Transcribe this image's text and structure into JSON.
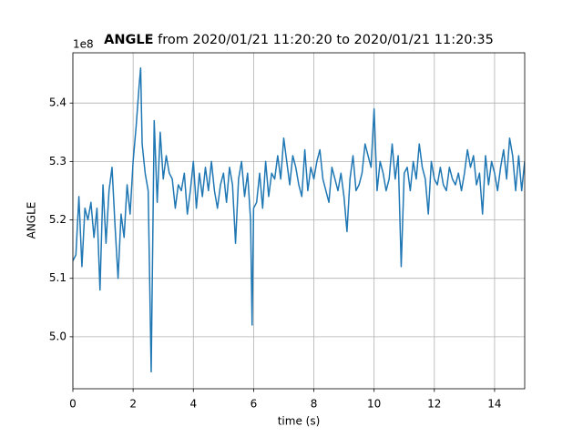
{
  "chart_data": {
    "type": "line",
    "title_bold": "ANGLE",
    "title": "from 2020/01/21 11:20:20 to 2020/01/21 11:20:35",
    "offset_text": "1e8",
    "xlabel": "time (s)",
    "ylabel": "ANGLE",
    "xlim": [
      0,
      15
    ],
    "ylim": [
      4.911,
      5.486
    ],
    "xticks": [
      0,
      2,
      4,
      6,
      8,
      10,
      12,
      14
    ],
    "yticks": [
      {
        "value": 5,
        "label": "5.0"
      },
      {
        "value": 5.1,
        "label": "5.1"
      },
      {
        "value": 5.2,
        "label": "5.2"
      },
      {
        "value": 5.3,
        "label": "5.3"
      },
      {
        "value": 5.4,
        "label": "5.4"
      }
    ],
    "grid": true,
    "x": [
      0,
      0.1,
      0.2,
      0.3,
      0.4,
      0.5,
      0.6,
      0.7,
      0.8,
      0.9,
      1,
      1.1,
      1.2,
      1.3,
      1.4,
      1.5,
      1.6,
      1.7,
      1.8,
      1.9,
      2,
      2.1,
      2.2,
      2.25,
      2.3,
      2.4,
      2.5,
      2.6,
      2.7,
      2.8,
      2.9,
      3,
      3.1,
      3.2,
      3.3,
      3.4,
      3.5,
      3.6,
      3.7,
      3.8,
      3.9,
      4,
      4.1,
      4.2,
      4.3,
      4.4,
      4.5,
      4.6,
      4.7,
      4.8,
      4.9,
      5,
      5.1,
      5.2,
      5.3,
      5.4,
      5.5,
      5.6,
      5.7,
      5.8,
      5.9,
      5.95,
      6,
      6.1,
      6.2,
      6.3,
      6.4,
      6.5,
      6.6,
      6.7,
      6.8,
      6.9,
      7,
      7.1,
      7.2,
      7.3,
      7.4,
      7.5,
      7.6,
      7.7,
      7.8,
      7.9,
      8,
      8.1,
      8.2,
      8.3,
      8.4,
      8.5,
      8.6,
      8.7,
      8.8,
      8.9,
      9,
      9.1,
      9.2,
      9.3,
      9.4,
      9.5,
      9.6,
      9.7,
      9.8,
      9.9,
      10,
      10.1,
      10.2,
      10.3,
      10.4,
      10.5,
      10.6,
      10.7,
      10.8,
      10.9,
      11,
      11.1,
      11.2,
      11.3,
      11.4,
      11.5,
      11.6,
      11.7,
      11.8,
      11.9,
      12,
      12.1,
      12.2,
      12.3,
      12.4,
      12.5,
      12.6,
      12.7,
      12.8,
      12.9,
      13,
      13.1,
      13.2,
      13.3,
      13.4,
      13.5,
      13.6,
      13.7,
      13.8,
      13.9,
      14,
      14.1,
      14.2,
      14.3,
      14.4,
      14.5,
      14.6,
      14.7,
      14.8,
      14.9,
      15
    ],
    "series": [
      {
        "color": "#1f77b4",
        "values": [
          5.13,
          5.14,
          5.24,
          5.12,
          5.22,
          5.2,
          5.23,
          5.17,
          5.22,
          5.08,
          5.26,
          5.16,
          5.25,
          5.29,
          5.19,
          5.1,
          5.21,
          5.17,
          5.26,
          5.21,
          5.3,
          5.36,
          5.43,
          5.46,
          5.33,
          5.28,
          5.25,
          4.94,
          5.37,
          5.23,
          5.35,
          5.27,
          5.31,
          5.28,
          5.27,
          5.22,
          5.26,
          5.25,
          5.28,
          5.21,
          5.25,
          5.3,
          5.22,
          5.28,
          5.24,
          5.29,
          5.25,
          5.3,
          5.25,
          5.22,
          5.26,
          5.28,
          5.23,
          5.29,
          5.26,
          5.16,
          5.27,
          5.3,
          5.24,
          5.28,
          5.2,
          5.02,
          5.22,
          5.23,
          5.28,
          5.22,
          5.3,
          5.24,
          5.28,
          5.27,
          5.31,
          5.27,
          5.34,
          5.3,
          5.26,
          5.31,
          5.29,
          5.26,
          5.24,
          5.32,
          5.25,
          5.29,
          5.27,
          5.3,
          5.32,
          5.27,
          5.25,
          5.23,
          5.29,
          5.27,
          5.25,
          5.28,
          5.24,
          5.18,
          5.27,
          5.31,
          5.25,
          5.26,
          5.28,
          5.33,
          5.31,
          5.29,
          5.39,
          5.25,
          5.3,
          5.28,
          5.25,
          5.27,
          5.33,
          5.27,
          5.31,
          5.12,
          5.28,
          5.29,
          5.25,
          5.3,
          5.27,
          5.33,
          5.29,
          5.27,
          5.21,
          5.3,
          5.27,
          5.26,
          5.29,
          5.26,
          5.25,
          5.29,
          5.27,
          5.26,
          5.28,
          5.25,
          5.28,
          5.32,
          5.29,
          5.31,
          5.26,
          5.28,
          5.21,
          5.31,
          5.26,
          5.3,
          5.28,
          5.25,
          5.29,
          5.32,
          5.27,
          5.34,
          5.31,
          5.25,
          5.31,
          5.25,
          5.3
        ]
      }
    ]
  }
}
